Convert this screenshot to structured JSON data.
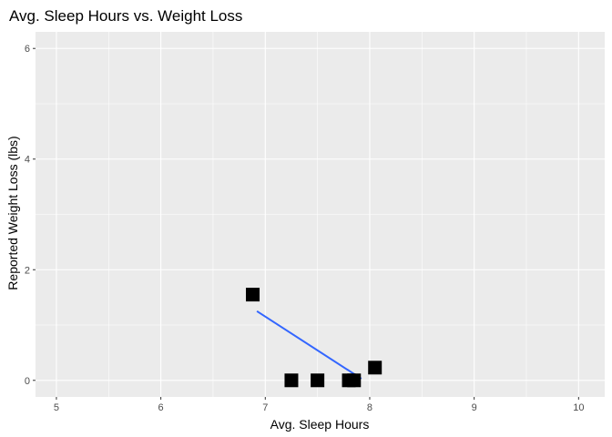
{
  "chart_data": {
    "type": "scatter",
    "title": "Avg. Sleep Hours vs. Weight Loss",
    "xlabel": "Avg. Sleep Hours",
    "ylabel": "Reported Weight Loss (lbs)",
    "xlim": [
      4.8,
      10.25
    ],
    "ylim": [
      -0.3,
      6.3
    ],
    "x_ticks": [
      5,
      6,
      7,
      8,
      9,
      10
    ],
    "y_ticks": [
      0,
      2,
      4,
      6
    ],
    "grid": true,
    "legend": "none",
    "colors": {
      "panel_background": "#ebebeb",
      "grid_major": "#ffffff",
      "points": "#000000",
      "trend_line": "#3366ff"
    },
    "series": [
      {
        "points": [
          {
            "x": 6.88,
            "y": 1.55
          },
          {
            "x": 7.25,
            "y": 0.0
          },
          {
            "x": 7.5,
            "y": 0.0
          },
          {
            "x": 7.8,
            "y": 0.0
          },
          {
            "x": 7.85,
            "y": 0.0
          },
          {
            "x": 8.05,
            "y": 0.23
          }
        ]
      }
    ],
    "trend_line": {
      "x": [
        6.92,
        7.92
      ],
      "y": [
        1.25,
        0.03
      ]
    }
  }
}
